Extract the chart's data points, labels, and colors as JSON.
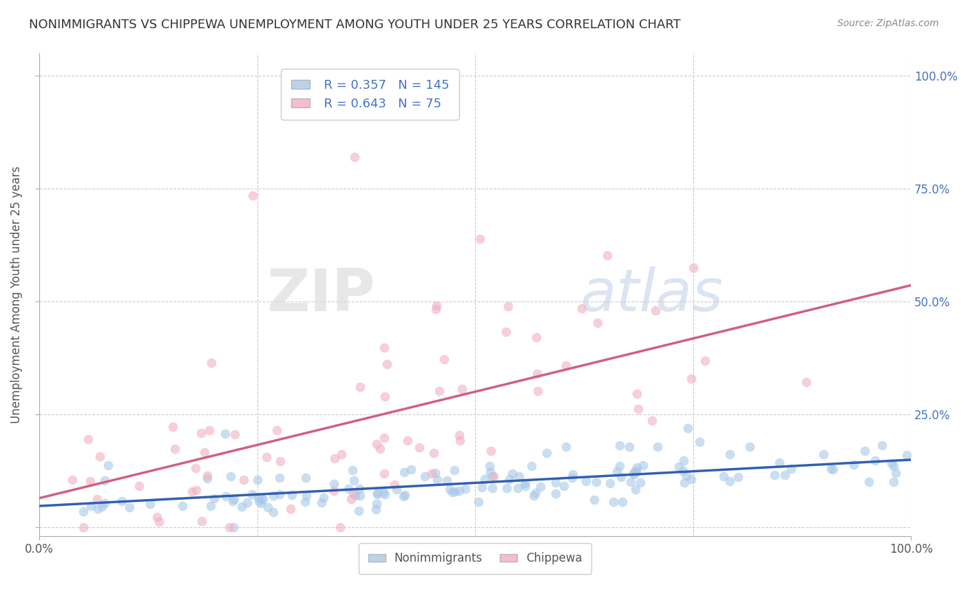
{
  "title": "NONIMMIGRANTS VS CHIPPEWA UNEMPLOYMENT AMONG YOUTH UNDER 25 YEARS CORRELATION CHART",
  "source": "Source: ZipAtlas.com",
  "ylabel": "Unemployment Among Youth under 25 years",
  "xlim": [
    0,
    1.0
  ],
  "ylim": [
    -0.02,
    1.05
  ],
  "nonimmigrants_R": 0.357,
  "nonimmigrants_N": 145,
  "chippewa_R": 0.643,
  "chippewa_N": 75,
  "blue_color": "#A8C8E8",
  "pink_color": "#F0B0C0",
  "blue_line_color": "#3060B0",
  "pink_line_color": "#D06080",
  "legend_color": "#4472C4",
  "background_color": "#FFFFFF",
  "grid_color": "#CCCCCC",
  "title_color": "#333333",
  "watermark_zip": "ZIP",
  "watermark_atlas": "atlas",
  "seed": 7
}
